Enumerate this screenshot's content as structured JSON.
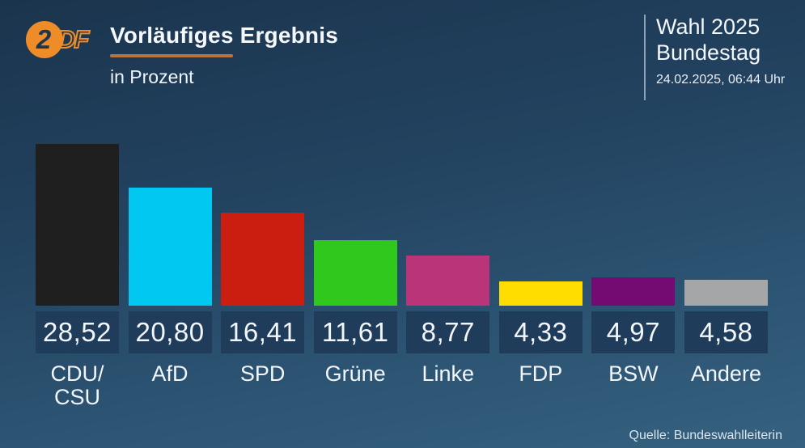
{
  "header": {
    "logo_circle_char": "2",
    "logo_rest": "DF",
    "title": "Vorläufiges Ergebnis",
    "subtitle": "in Prozent",
    "election_line1": "Wahl 2025",
    "election_line2": "Bundestag",
    "timestamp": "24.02.2025, 06:44 Uhr"
  },
  "footer": {
    "source": "Quelle: Bundeswahlleiterin"
  },
  "colors": {
    "zdf_orange": "#ee8c28",
    "title_underline": "#b8743f",
    "value_box_bg": "#1f3d5b",
    "divider_line": "#8ba3ba",
    "background_top": "#1b344e",
    "background_bottom": "#35617f"
  },
  "chart_data": {
    "type": "bar",
    "title": "Vorläufiges Ergebnis",
    "subtitle": "in Prozent",
    "unit": "Prozent",
    "categories": [
      "CDU/\nCSU",
      "AfD",
      "SPD",
      "Grüne",
      "Linke",
      "FDP",
      "BSW",
      "Andere"
    ],
    "values": [
      28.52,
      20.8,
      16.41,
      11.61,
      8.77,
      4.33,
      4.97,
      4.58
    ],
    "value_labels": [
      "28,52",
      "20,80",
      "16,41",
      "11,61",
      "8,77",
      "4,33",
      "4,97",
      "4,58"
    ],
    "bar_colors": [
      "#1f1f1f",
      "#00c8f0",
      "#cc1e10",
      "#30c81c",
      "#b93479",
      "#ffdd00",
      "#730b72",
      "#a5a6a8"
    ],
    "ylim": [
      0,
      28.52
    ],
    "grid": false,
    "legend": "none",
    "source": "Quelle: Bundeswahlleiterin"
  }
}
